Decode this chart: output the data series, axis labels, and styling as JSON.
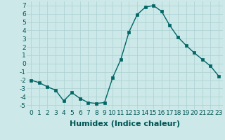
{
  "x": [
    0,
    1,
    2,
    3,
    4,
    5,
    6,
    7,
    8,
    9,
    10,
    11,
    12,
    13,
    14,
    15,
    16,
    17,
    18,
    19,
    20,
    21,
    22,
    23
  ],
  "y": [
    -2,
    -2.3,
    -2.8,
    -3.2,
    -4.5,
    -3.5,
    -4.2,
    -4.7,
    -4.8,
    -4.7,
    -1.7,
    0.5,
    3.8,
    5.9,
    6.8,
    7.0,
    6.3,
    4.6,
    3.2,
    2.2,
    1.3,
    0.5,
    -0.3,
    -1.5
  ],
  "line_color": "#006666",
  "marker": "s",
  "markersize": 2.5,
  "linewidth": 1.0,
  "xlabel": "Humidex (Indice chaleur)",
  "xlim": [
    -0.5,
    23.5
  ],
  "ylim": [
    -5.5,
    7.5
  ],
  "yticks": [
    -5,
    -4,
    -3,
    -2,
    -1,
    0,
    1,
    2,
    3,
    4,
    5,
    6,
    7
  ],
  "xticks": [
    0,
    1,
    2,
    3,
    4,
    5,
    6,
    7,
    8,
    9,
    10,
    11,
    12,
    13,
    14,
    15,
    16,
    17,
    18,
    19,
    20,
    21,
    22,
    23
  ],
  "bg_color": "#cce8e8",
  "grid_color": "#aad0d0",
  "text_color": "#005555",
  "tick_fontsize": 6.5,
  "xlabel_fontsize": 8
}
